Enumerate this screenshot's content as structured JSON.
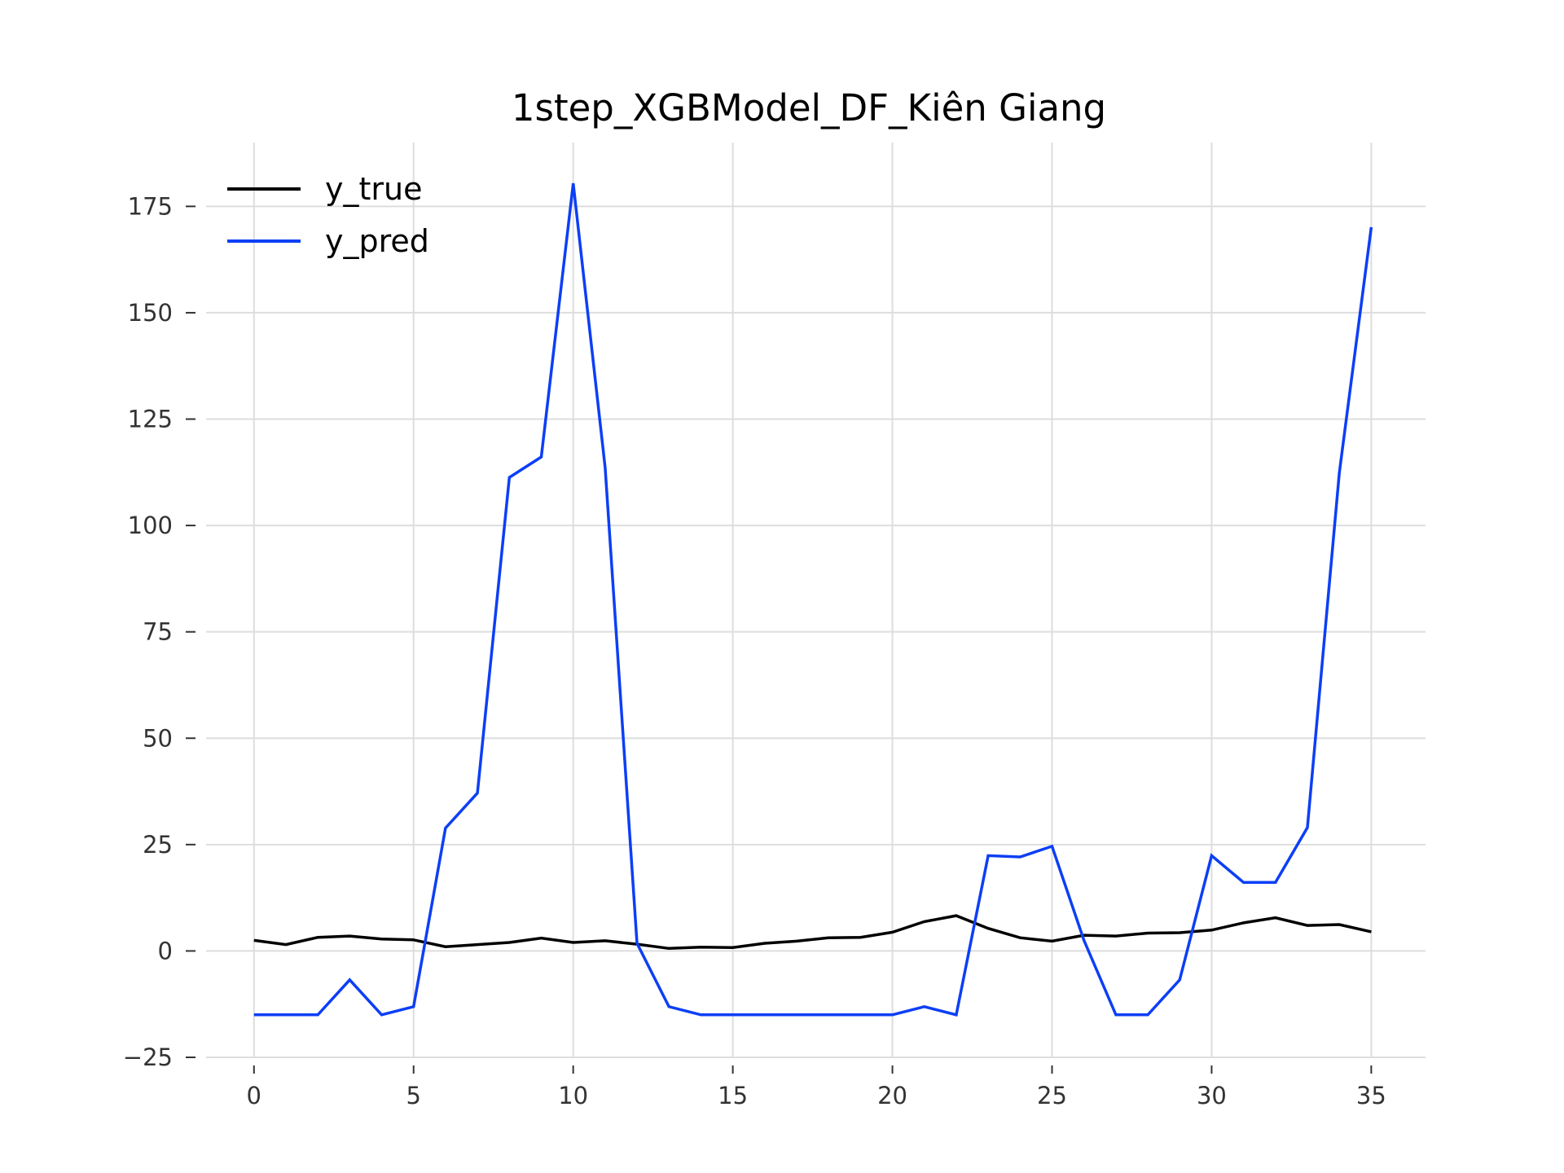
{
  "chart_data": {
    "type": "line",
    "title": "1step_XGBModel_DF_Kiên Giang",
    "xlabel": "",
    "ylabel": "",
    "xlim": [
      -1.5,
      36.7
    ],
    "ylim": [
      -25,
      190
    ],
    "xticks": [
      0,
      5,
      10,
      15,
      20,
      25,
      30,
      35
    ],
    "yticks": [
      -25,
      0,
      25,
      50,
      75,
      100,
      125,
      150,
      175
    ],
    "xtick_labels": [
      "0",
      "5",
      "10",
      "15",
      "20",
      "25",
      "30",
      "35"
    ],
    "ytick_labels": [
      "−25",
      "0",
      "25",
      "50",
      "75",
      "100",
      "125",
      "150",
      "175"
    ],
    "grid": true,
    "legend_position": "top-left",
    "x": [
      0,
      1,
      2,
      3,
      4,
      5,
      6,
      7,
      8,
      9,
      10,
      11,
      12,
      13,
      14,
      15,
      16,
      17,
      18,
      19,
      20,
      21,
      22,
      23,
      24,
      25,
      26,
      27,
      28,
      29,
      30,
      31,
      32,
      33,
      34,
      35
    ],
    "series": [
      {
        "name": "y_true",
        "color": "#000000",
        "values": [
          2.5,
          1.5,
          3.2,
          3.5,
          2.8,
          2.6,
          1.0,
          1.5,
          2.0,
          3.0,
          2.0,
          2.4,
          1.6,
          0.6,
          0.9,
          0.8,
          1.8,
          2.3,
          3.1,
          3.2,
          4.4,
          6.9,
          8.3,
          5.3,
          3.1,
          2.3,
          3.7,
          3.5,
          4.2,
          4.3,
          4.9,
          6.6,
          7.8,
          6.0,
          6.2,
          4.5
        ]
      },
      {
        "name": "y_pred",
        "color": "#0c3ff5",
        "values": [
          -15,
          -15,
          -15,
          -6.8,
          -15,
          -13.1,
          28.9,
          37.1,
          111.3,
          116.1,
          180.4,
          113.6,
          1.8,
          -13.1,
          -15,
          -15,
          -15,
          -15,
          -15,
          -15,
          -15,
          -13.1,
          -15,
          22.4,
          22.1,
          24.6,
          2.5,
          -15,
          -15,
          -6.8,
          22.4,
          16.1,
          16.1,
          29.0,
          112.4,
          170.1
        ]
      }
    ]
  }
}
